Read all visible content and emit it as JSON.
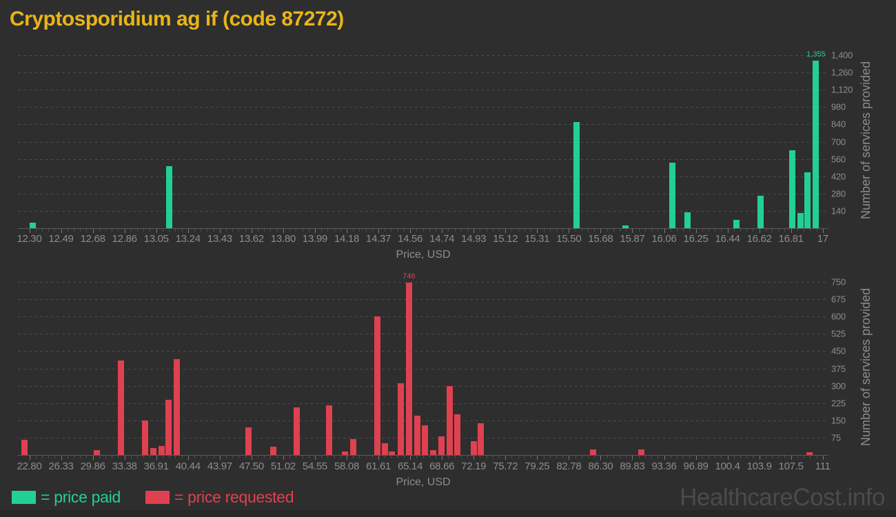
{
  "title": "Cryptosporidium ag if (code 87272)",
  "watermark": "HealthcareCost.info",
  "legend": {
    "paid": {
      "label": "= price paid",
      "color": "#22d095"
    },
    "requested": {
      "label": "= price requested",
      "color": "#df4150"
    }
  },
  "colors": {
    "background": "#2e2e2e",
    "title": "#e9b517",
    "paid_green": "#22d095",
    "requested_red": "#df4150",
    "axis_text": "#8d8d8d",
    "gridline": "#4b4b4b",
    "watermark": "#4b4b4b"
  },
  "chart_data": [
    {
      "type": "bar",
      "name": "price paid",
      "xlabel": "Price, USD",
      "ylabel": "Number of services provided",
      "bar_color": "#22d095",
      "legend_entry": "= price paid",
      "x_tick_labels": [
        "12.30",
        "12.49",
        "12.68",
        "12.86",
        "13.05",
        "13.24",
        "13.43",
        "13.62",
        "13.80",
        "13.99",
        "14.18",
        "14.37",
        "14.56",
        "14.74",
        "14.93",
        "15.12",
        "15.31",
        "15.50",
        "15.68",
        "15.87",
        "16.06",
        "16.25",
        "16.44",
        "16.62",
        "16.81",
        "17"
      ],
      "x_tick_min": 12.3,
      "x_tick_step": 0.188,
      "y_tick_labels": [
        "140",
        "280",
        "420",
        "560",
        "700",
        "840",
        "980",
        "1,120",
        "1,260",
        "1,400"
      ],
      "y_tick_step": 140,
      "y_max_gridline": 1400,
      "ylim": [
        0,
        1430
      ],
      "grid": true,
      "peak_label": "1,355",
      "bars": [
        {
          "price": 12.32,
          "count": 45
        },
        {
          "price": 13.13,
          "count": 500
        },
        {
          "price": 15.54,
          "count": 860
        },
        {
          "price": 15.83,
          "count": 20
        },
        {
          "price": 16.11,
          "count": 530
        },
        {
          "price": 16.2,
          "count": 130
        },
        {
          "price": 16.49,
          "count": 65
        },
        {
          "price": 16.63,
          "count": 265
        },
        {
          "price": 16.82,
          "count": 630
        },
        {
          "price": 16.87,
          "count": 125
        },
        {
          "price": 16.91,
          "count": 450
        },
        {
          "price": 16.96,
          "count": 1355
        }
      ]
    },
    {
      "type": "bar",
      "name": "price requested",
      "xlabel": "Price, USD",
      "ylabel": "Number of services provided",
      "bar_color": "#df4150",
      "legend_entry": "= price requested",
      "x_tick_labels": [
        "22.80",
        "26.33",
        "29.86",
        "33.38",
        "36.91",
        "40.44",
        "43.97",
        "47.50",
        "51.02",
        "54.55",
        "58.08",
        "61.61",
        "65.14",
        "68.66",
        "72.19",
        "75.72",
        "79.25",
        "82.78",
        "86.30",
        "89.83",
        "93.36",
        "96.89",
        "100.4",
        "103.9",
        "107.5",
        "111"
      ],
      "x_tick_min": 22.8,
      "x_tick_step": 3.528,
      "y_tick_labels": [
        "75",
        "150",
        "225",
        "300",
        "375",
        "450",
        "525",
        "600",
        "675",
        "750"
      ],
      "y_tick_step": 75,
      "y_max_gridline": 750,
      "ylim": [
        0,
        765
      ],
      "grid": true,
      "peak_label": "746",
      "bars": [
        {
          "price": 22.3,
          "count": 65
        },
        {
          "price": 30.3,
          "count": 20
        },
        {
          "price": 33.0,
          "count": 410
        },
        {
          "price": 35.7,
          "count": 150
        },
        {
          "price": 36.6,
          "count": 30
        },
        {
          "price": 37.5,
          "count": 40
        },
        {
          "price": 38.3,
          "count": 240
        },
        {
          "price": 39.2,
          "count": 415
        },
        {
          "price": 47.2,
          "count": 120
        },
        {
          "price": 49.9,
          "count": 35
        },
        {
          "price": 52.5,
          "count": 205
        },
        {
          "price": 56.1,
          "count": 215
        },
        {
          "price": 57.9,
          "count": 15
        },
        {
          "price": 58.8,
          "count": 70
        },
        {
          "price": 61.5,
          "count": 600
        },
        {
          "price": 62.3,
          "count": 50
        },
        {
          "price": 63.1,
          "count": 15
        },
        {
          "price": 64.1,
          "count": 310
        },
        {
          "price": 65.0,
          "count": 746
        },
        {
          "price": 65.9,
          "count": 170
        },
        {
          "price": 66.8,
          "count": 130
        },
        {
          "price": 67.7,
          "count": 20
        },
        {
          "price": 68.6,
          "count": 80
        },
        {
          "price": 69.5,
          "count": 300
        },
        {
          "price": 70.4,
          "count": 175
        },
        {
          "price": 72.2,
          "count": 60
        },
        {
          "price": 73.0,
          "count": 137
        },
        {
          "price": 85.5,
          "count": 25
        },
        {
          "price": 90.8,
          "count": 25
        },
        {
          "price": 109.5,
          "count": 12
        }
      ]
    }
  ]
}
